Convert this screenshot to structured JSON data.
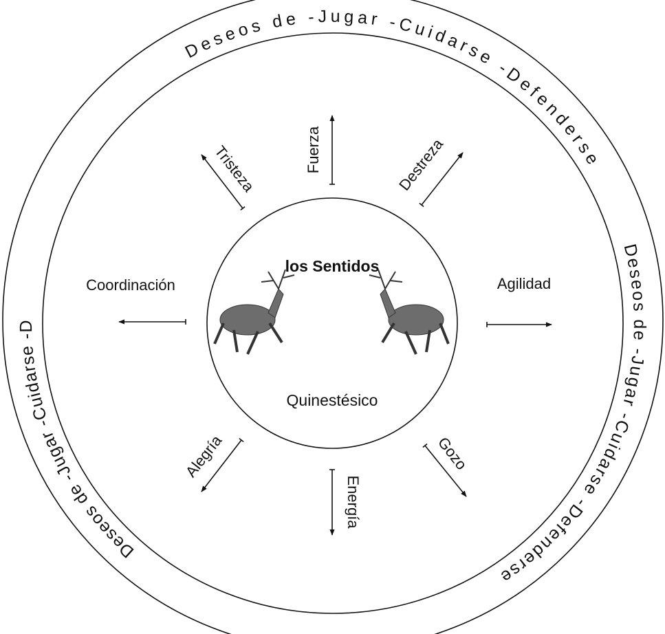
{
  "ring_texts": [
    "Deseos de -Jugar -Cuidarse -Defenderse",
    "Deseos de -Jugar -Cuidarse -Defenderse",
    "Deseos de -Jugar -Cuidarse -Defenderse"
  ],
  "center": {
    "title": "los Sentidos",
    "subtitle": "Quinestésico"
  },
  "arrows": [
    {
      "label": "Fuerza"
    },
    {
      "label": "Destreza"
    },
    {
      "label": "Agilidad"
    },
    {
      "label": "Gozo"
    },
    {
      "label": "Energía"
    },
    {
      "label": "Alegría"
    },
    {
      "label": "Coordinación"
    },
    {
      "label": "Tristeza"
    }
  ]
}
